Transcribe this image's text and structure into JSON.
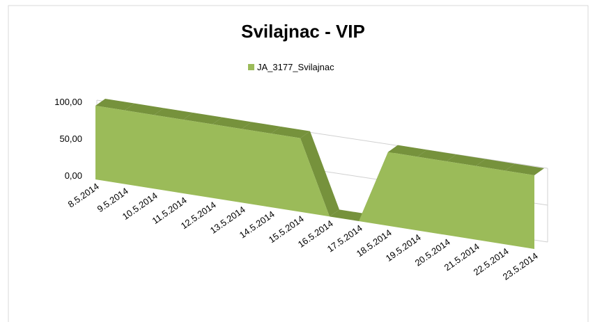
{
  "chart_data": {
    "type": "area3d",
    "title": "Svilajnac  - VIP",
    "categories": [
      "8.5.2014",
      "9.5.2014",
      "10.5.2014",
      "11.5.2014",
      "12.5.2014",
      "13.5.2014",
      "14.5.2014",
      "15.5.2014",
      "16.5.2014",
      "17.5.2014",
      "18.5.2014",
      "19.5.2014",
      "20.5.2014",
      "21.5.2014",
      "22.5.2014",
      "23.5.2014"
    ],
    "series": [
      {
        "name": "JA_3177_Svilajnac",
        "color": "#9bbb59",
        "values": [
          100,
          100,
          100,
          100,
          100,
          100,
          100,
          100,
          0,
          0,
          100,
          100,
          100,
          100,
          100,
          100
        ]
      }
    ],
    "ylim": [
      0,
      100
    ],
    "yticks": [
      {
        "value": 0,
        "label": "0,00"
      },
      {
        "value": 50,
        "label": "50,00"
      },
      {
        "value": 100,
        "label": "100,00"
      }
    ],
    "grid": true,
    "legend": "top"
  }
}
